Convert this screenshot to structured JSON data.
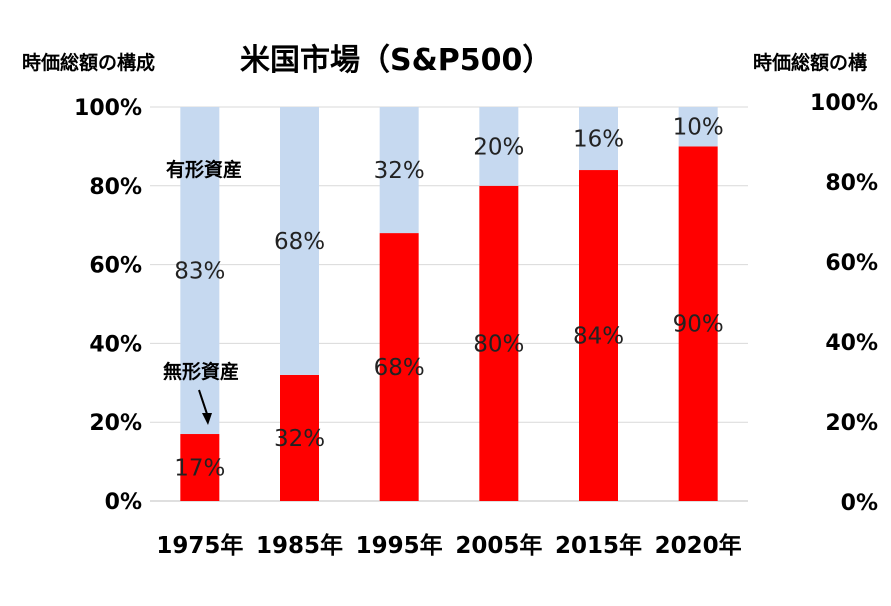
{
  "left_ylabel": "時価総額の構成",
  "right_ylabel": "時価総額の構",
  "chart_data": {
    "type": "bar",
    "stacked": true,
    "title": "米国市場（S&P500）",
    "categories": [
      "1975年",
      "1985年",
      "1995年",
      "2005年",
      "2015年",
      "2020年"
    ],
    "ylim": [
      0,
      100
    ],
    "yticks": [
      "0%",
      "20%",
      "40%",
      "60%",
      "80%",
      "100%"
    ],
    "grid": true,
    "series": [
      {
        "name": "無形資産",
        "color": "#ff0000",
        "values": [
          17,
          32,
          68,
          80,
          84,
          90
        ],
        "labels": [
          "17%",
          "32%",
          "68%",
          "80%",
          "84%",
          "90%"
        ]
      },
      {
        "name": "有形資産",
        "color": "#c6d9f0",
        "values": [
          83,
          68,
          32,
          20,
          16,
          10
        ],
        "labels": [
          "83%",
          "68%",
          "32%",
          "20%",
          "16%",
          "10%"
        ]
      }
    ]
  },
  "right_panel_yticks": [
    "0%",
    "20%",
    "40%",
    "60%",
    "80%",
    "100%"
  ]
}
